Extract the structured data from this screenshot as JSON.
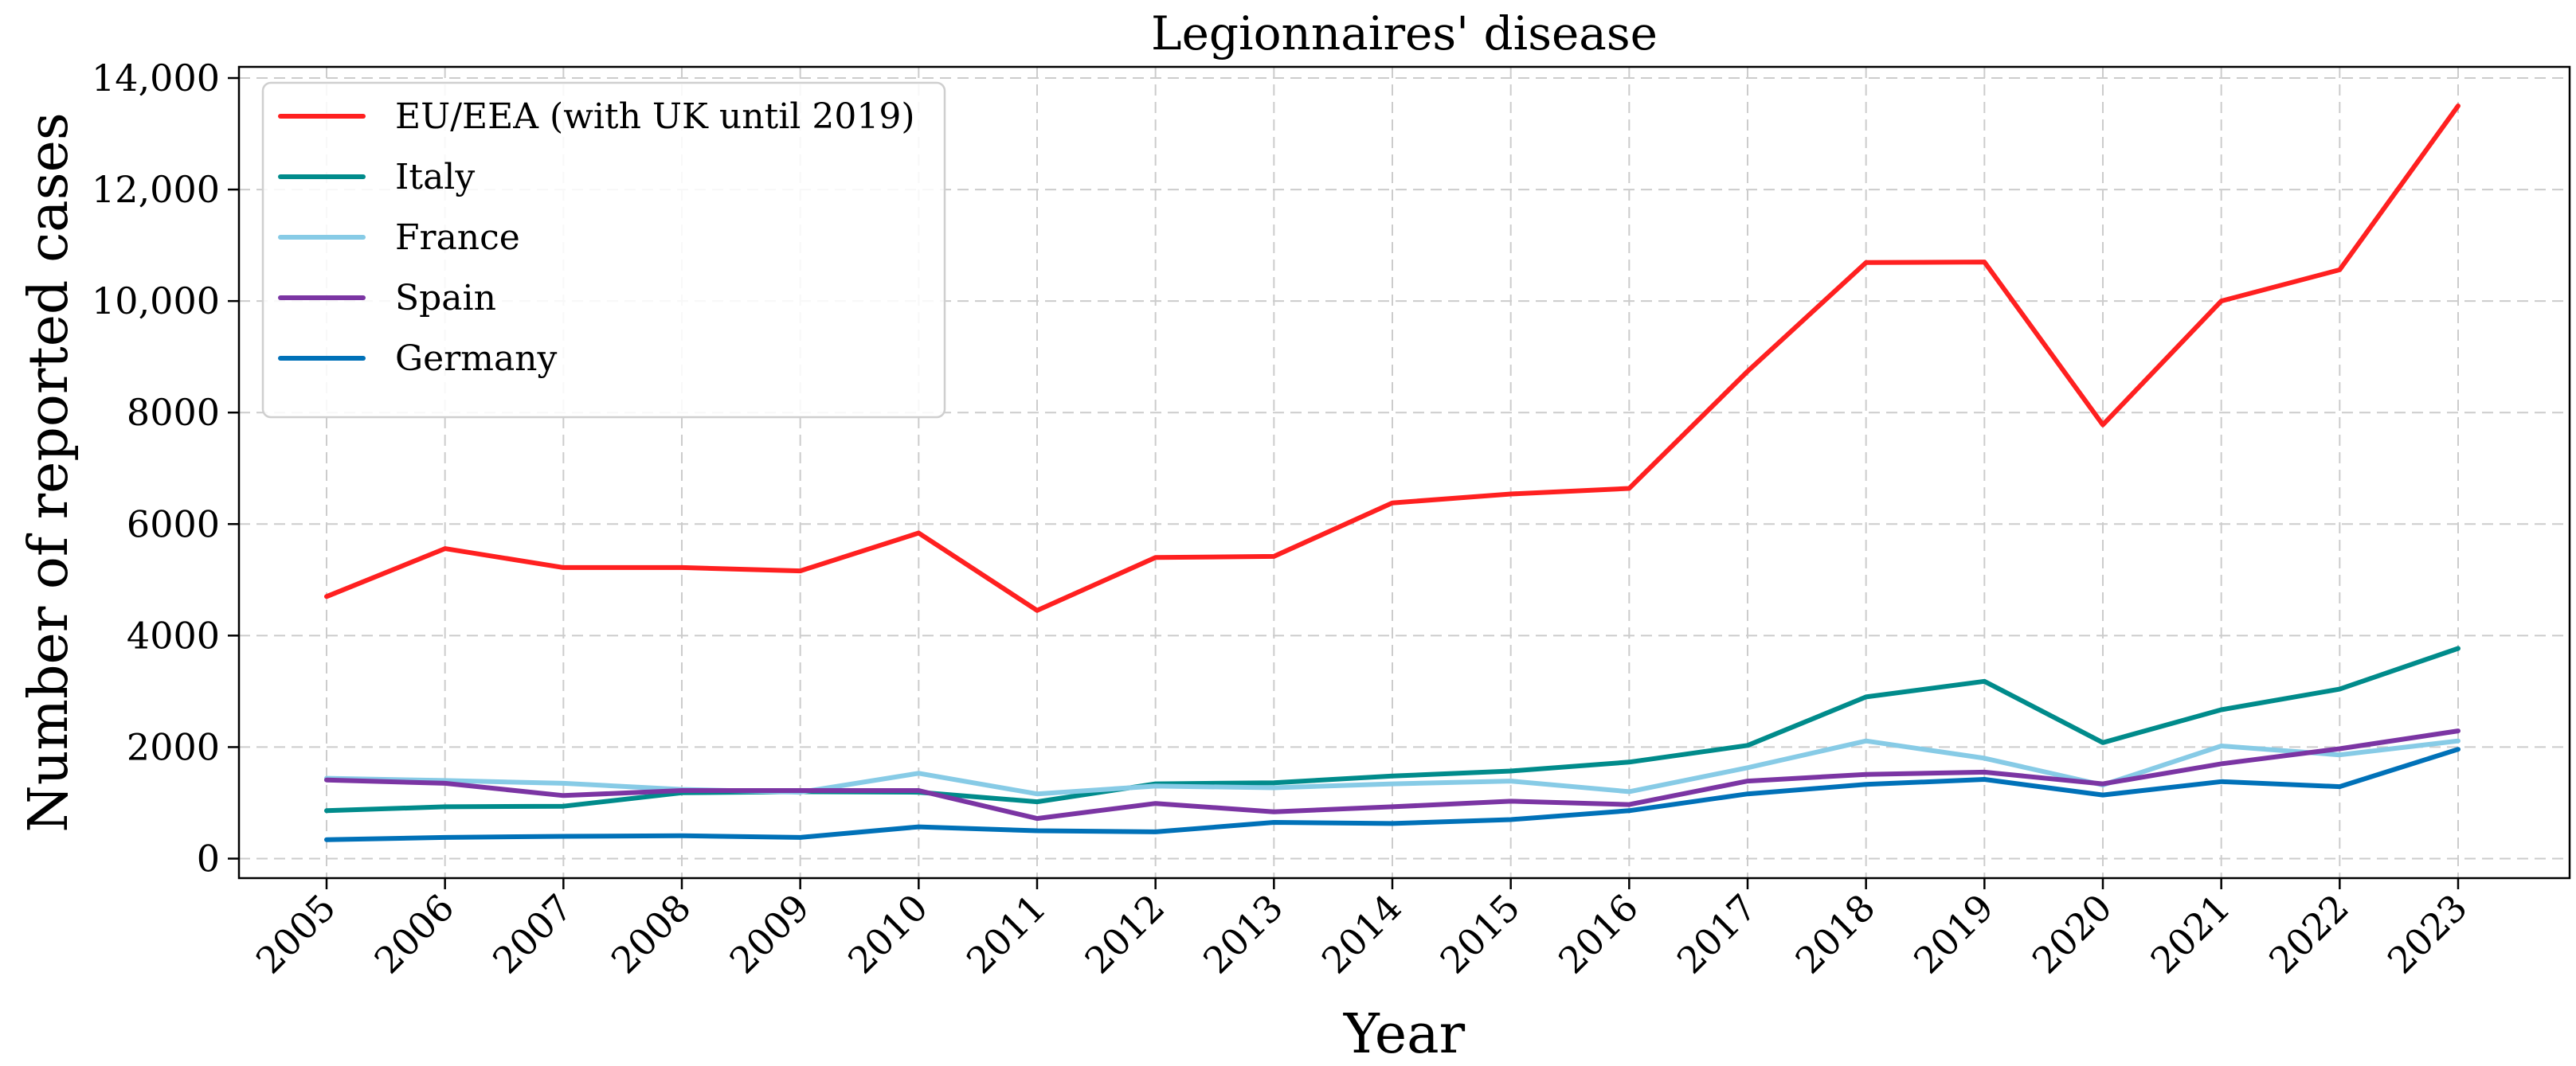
{
  "chart_data": {
    "type": "line",
    "title": "Legionnaires' disease",
    "xlabel": "Year",
    "ylabel": "Number of reported cases",
    "x": [
      "2005",
      "2006",
      "2007",
      "2008",
      "2009",
      "2010",
      "2011",
      "2012",
      "2013",
      "2014",
      "2015",
      "2016",
      "2017",
      "2018",
      "2019",
      "2020",
      "2021",
      "2022",
      "2023"
    ],
    "ylim": [
      -350,
      14200
    ],
    "yticks": [
      0,
      2000,
      4000,
      6000,
      8000,
      10000,
      12000,
      14000
    ],
    "ytick_labels": [
      "0",
      "2000",
      "4000",
      "6000",
      "8000",
      "10,000",
      "12,000",
      "14,000"
    ],
    "grid": true,
    "legend_position": "top-left",
    "series": [
      {
        "name": "EU/EEA (with UK until 2019)",
        "color": "#ff2020",
        "values": [
          4700,
          5560,
          5220,
          5220,
          5160,
          5840,
          4450,
          5400,
          5420,
          6380,
          6540,
          6640,
          8740,
          10690,
          10700,
          7780,
          10000,
          10560,
          13500
        ]
      },
      {
        "name": "Italy",
        "color": "#008b8b",
        "values": [
          860,
          930,
          940,
          1180,
          1200,
          1190,
          1020,
          1340,
          1360,
          1480,
          1570,
          1730,
          2030,
          2900,
          3180,
          2080,
          2670,
          3040,
          3770
        ]
      },
      {
        "name": "France",
        "color": "#87cbe6",
        "values": [
          1440,
          1400,
          1350,
          1240,
          1190,
          1530,
          1160,
          1300,
          1270,
          1340,
          1390,
          1200,
          1630,
          2110,
          1800,
          1320,
          2020,
          1860,
          2110
        ]
      },
      {
        "name": "Spain",
        "color": "#7b35a3",
        "values": [
          1410,
          1350,
          1130,
          1220,
          1220,
          1220,
          720,
          990,
          840,
          930,
          1030,
          970,
          1390,
          1510,
          1550,
          1340,
          1700,
          1970,
          2290
        ]
      },
      {
        "name": "Germany",
        "color": "#0071b8",
        "values": [
          340,
          380,
          400,
          410,
          380,
          570,
          500,
          480,
          650,
          630,
          700,
          860,
          1160,
          1330,
          1420,
          1140,
          1380,
          1290,
          1960
        ]
      }
    ]
  }
}
